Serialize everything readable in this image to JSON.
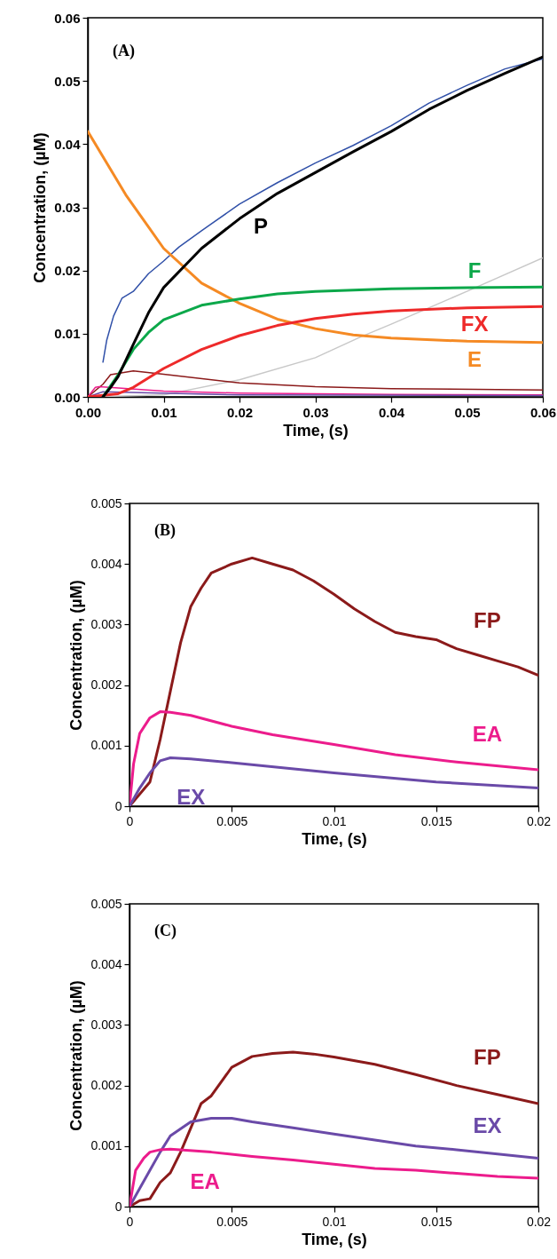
{
  "chart_data": [
    {
      "type": "line",
      "title": "(A)",
      "xlabel": "Time, (s)",
      "ylabel": "Concentration, (µM)",
      "xlim": [
        0,
        0.06
      ],
      "ylim": [
        0,
        0.06
      ],
      "xticks": [
        {
          "value": 0,
          "label": "0.00"
        },
        {
          "value": 0.01,
          "label": "0.01"
        },
        {
          "value": 0.02,
          "label": "0.02"
        },
        {
          "value": 0.03,
          "label": "0.03"
        },
        {
          "value": 0.04,
          "label": "0.04"
        },
        {
          "value": 0.05,
          "label": "0.05"
        },
        {
          "value": 0.06,
          "label": "0.06"
        }
      ],
      "yticks": [
        {
          "value": 0,
          "label": "0.00"
        },
        {
          "value": 0.01,
          "label": "0.01"
        },
        {
          "value": 0.02,
          "label": "0.02"
        },
        {
          "value": 0.03,
          "label": "0.03"
        },
        {
          "value": 0.04,
          "label": "0.04"
        },
        {
          "value": 0.05,
          "label": "0.05"
        },
        {
          "value": 0.06,
          "label": "0.06"
        }
      ],
      "series": [
        {
          "color": "#3050a8",
          "x": [
            0.002,
            0.0025,
            0.0034,
            0.0045,
            0.006,
            0.008,
            0.01,
            0.012,
            0.015,
            0.02,
            0.025,
            0.03,
            0.035,
            0.04,
            0.045,
            0.05,
            0.055,
            0.06
          ],
          "values": [
            0.0055,
            0.009,
            0.0128,
            0.0156,
            0.0167,
            0.0195,
            0.0215,
            0.0237,
            0.0263,
            0.0305,
            0.0339,
            0.037,
            0.0398,
            0.0429,
            0.0465,
            0.0493,
            0.0519,
            0.0535
          ]
        },
        {
          "color": "#c8c8c8",
          "x": [
            0,
            0.01,
            0.02,
            0.03,
            0.036,
            0.04,
            0.05,
            0.06
          ],
          "values": [
            0,
            0.0003,
            0.0027,
            0.0062,
            0.0095,
            0.0115,
            0.0167,
            0.022
          ]
        },
        {
          "color": "#8b1a1a",
          "x": [
            0,
            0.002,
            0.003,
            0.006,
            0.01,
            0.02,
            0.03,
            0.04,
            0.06
          ],
          "values": [
            0,
            0.002,
            0.0035,
            0.0041,
            0.0036,
            0.0022,
            0.0016,
            0.0013,
            0.0011
          ]
        },
        {
          "color": "#ec1c8c",
          "x": [
            0,
            0.001,
            0.0015,
            0.01,
            0.02,
            0.04,
            0.06
          ],
          "values": [
            0,
            0.0015,
            0.0016,
            0.0009,
            0.0006,
            0.0004,
            0.0003
          ]
        },
        {
          "color": "#6a4aa8",
          "x": [
            0,
            0.002,
            0.02,
            0.06
          ],
          "values": [
            0,
            0.0008,
            0.0003,
            0.0002
          ]
        },
        {
          "name": "E",
          "color": "#f58a24",
          "x": [
            0,
            0.005,
            0.01,
            0.015,
            0.02,
            0.025,
            0.03,
            0.035,
            0.04,
            0.05,
            0.06
          ],
          "values": [
            0.042,
            0.032,
            0.0235,
            0.018,
            0.0148,
            0.0123,
            0.0108,
            0.0098,
            0.0093,
            0.0088,
            0.0086
          ]
        },
        {
          "name": "FX",
          "color": "#ee2a2a",
          "x": [
            0,
            0.004,
            0.006,
            0.01,
            0.015,
            0.02,
            0.025,
            0.03,
            0.035,
            0.04,
            0.05,
            0.06
          ],
          "values": [
            0,
            0.0005,
            0.0015,
            0.0045,
            0.0075,
            0.0097,
            0.0113,
            0.0124,
            0.0131,
            0.0136,
            0.0141,
            0.0143
          ]
        },
        {
          "name": "F",
          "color": "#0ca84a",
          "x": [
            0.002,
            0.004,
            0.006,
            0.008,
            0.01,
            0.015,
            0.02,
            0.025,
            0.03,
            0.04,
            0.05,
            0.06
          ],
          "values": [
            0,
            0.0035,
            0.0075,
            0.0102,
            0.0122,
            0.0145,
            0.0155,
            0.0163,
            0.0167,
            0.0171,
            0.0173,
            0.0174
          ]
        },
        {
          "name": "P",
          "color": "#000000",
          "x": [
            0.002,
            0.003,
            0.004,
            0.006,
            0.008,
            0.01,
            0.015,
            0.02,
            0.025,
            0.03,
            0.035,
            0.04,
            0.045,
            0.05,
            0.055,
            0.06
          ],
          "values": [
            0,
            0.0015,
            0.0032,
            0.0083,
            0.0133,
            0.0173,
            0.0235,
            0.0282,
            0.0322,
            0.0355,
            0.0388,
            0.042,
            0.0455,
            0.0485,
            0.0512,
            0.0538
          ]
        }
      ]
    },
    {
      "type": "line",
      "title": "(B)",
      "xlabel": "Time, (s)",
      "ylabel": "Concentration, (µM)",
      "xlim": [
        0,
        0.02
      ],
      "ylim": [
        0,
        0.005
      ],
      "xticks": [
        0,
        0.005,
        0.01,
        0.015,
        0.02
      ],
      "yticks": [
        0,
        0.001,
        0.002,
        0.003,
        0.004,
        0.005
      ],
      "series": [
        {
          "name": "FP",
          "color": "#8b1a1a",
          "x": [
            0,
            0.001,
            0.0015,
            0.002,
            0.0025,
            0.003,
            0.0035,
            0.004,
            0.005,
            0.006,
            0.007,
            0.008,
            0.009,
            0.01,
            0.011,
            0.012,
            0.013,
            0.014,
            0.015,
            0.016,
            0.017,
            0.018,
            0.019,
            0.02
          ],
          "values": [
            0,
            0.0004,
            0.0011,
            0.0019,
            0.0027,
            0.0033,
            0.0036,
            0.00385,
            0.004,
            0.0041,
            0.004,
            0.0039,
            0.00372,
            0.0035,
            0.00326,
            0.00305,
            0.00287,
            0.0028,
            0.00275,
            0.0026,
            0.0025,
            0.0024,
            0.0023,
            0.00216
          ]
        },
        {
          "name": "EA",
          "color": "#ec1c8c",
          "x": [
            0,
            0.0002,
            0.0005,
            0.001,
            0.0015,
            0.002,
            0.003,
            0.005,
            0.007,
            0.01,
            0.013,
            0.016,
            0.02
          ],
          "values": [
            0,
            0.0007,
            0.0012,
            0.00146,
            0.00156,
            0.00155,
            0.0015,
            0.00132,
            0.00118,
            0.00102,
            0.00085,
            0.00073,
            0.0006
          ]
        },
        {
          "name": "EX",
          "color": "#6a4aa8",
          "x": [
            0,
            0.0005,
            0.001,
            0.0015,
            0.002,
            0.003,
            0.005,
            0.01,
            0.015,
            0.02
          ],
          "values": [
            0,
            0.0003,
            0.00055,
            0.00075,
            0.0008,
            0.00078,
            0.00072,
            0.00055,
            0.0004,
            0.0003
          ]
        }
      ]
    },
    {
      "type": "line",
      "title": "(C)",
      "xlabel": "Time, (s)",
      "ylabel": "Concentration, (µM)",
      "xlim": [
        0,
        0.02
      ],
      "ylim": [
        0,
        0.005
      ],
      "xticks": [
        0,
        0.005,
        0.01,
        0.015,
        0.02
      ],
      "yticks": [
        0,
        0.001,
        0.002,
        0.003,
        0.004,
        0.005
      ],
      "series": [
        {
          "name": "FP",
          "color": "#8b1a1a",
          "x": [
            0,
            0.0005,
            0.001,
            0.0015,
            0.002,
            0.0025,
            0.003,
            0.0035,
            0.004,
            0.005,
            0.006,
            0.007,
            0.008,
            0.009,
            0.01,
            0.012,
            0.014,
            0.016,
            0.018,
            0.02
          ],
          "values": [
            0,
            0.0001,
            0.00013,
            0.0004,
            0.00056,
            0.0009,
            0.0013,
            0.0017,
            0.00183,
            0.0023,
            0.00248,
            0.00253,
            0.00255,
            0.00252,
            0.00247,
            0.00235,
            0.00218,
            0.002,
            0.00185,
            0.0017
          ]
        },
        {
          "name": "EX",
          "color": "#6a4aa8",
          "x": [
            0,
            0.0005,
            0.001,
            0.0015,
            0.002,
            0.003,
            0.004,
            0.005,
            0.006,
            0.008,
            0.01,
            0.012,
            0.014,
            0.016,
            0.018,
            0.02
          ],
          "values": [
            0,
            0.0003,
            0.0006,
            0.0009,
            0.00117,
            0.0014,
            0.00146,
            0.00146,
            0.0014,
            0.0013,
            0.0012,
            0.0011,
            0.001,
            0.00094,
            0.00087,
            0.0008
          ]
        },
        {
          "name": "EA",
          "color": "#ec1c8c",
          "x": [
            0,
            0.0003,
            0.0007,
            0.001,
            0.0015,
            0.002,
            0.004,
            0.006,
            0.008,
            0.01,
            0.012,
            0.014,
            0.016,
            0.018,
            0.02
          ],
          "values": [
            0,
            0.0006,
            0.0008,
            0.0009,
            0.00094,
            0.00095,
            0.0009,
            0.00083,
            0.00077,
            0.0007,
            0.00063,
            0.0006,
            0.00055,
            0.0005,
            0.00047
          ]
        }
      ]
    }
  ]
}
